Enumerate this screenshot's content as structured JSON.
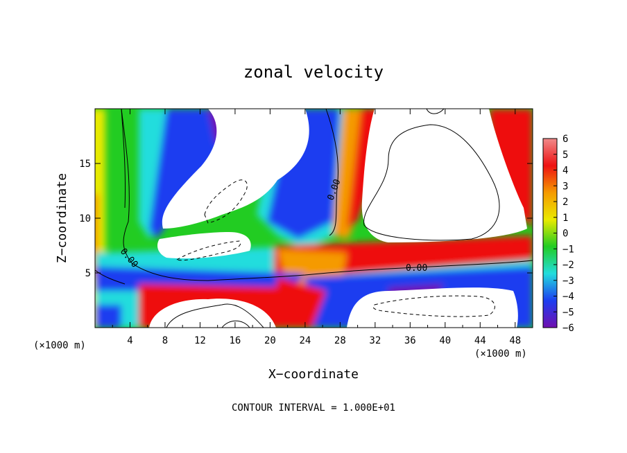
{
  "chart_data": {
    "type": "heatmap",
    "title": "zonal velocity",
    "xlabel": "X−coordinate",
    "ylabel": "Z−coordinate",
    "x_unit_left": "(×1000 m)",
    "x_unit_right": "(×1000 m)",
    "footer": "CONTOUR INTERVAL = 1.000E+01",
    "xlim": [
      0,
      50
    ],
    "ylim": [
      0,
      20
    ],
    "xticks": [
      "4",
      "8",
      "12",
      "16",
      "20",
      "24",
      "28",
      "32",
      "36",
      "40",
      "44",
      "48"
    ],
    "yticks": [
      "5",
      "10",
      "15"
    ],
    "colorbar_ticks": [
      "6",
      "5",
      "4",
      "3",
      "2",
      "1",
      "0",
      "−1",
      "−2",
      "−3",
      "−4",
      "−5",
      "−6"
    ],
    "colorbar_range": [
      -6,
      6
    ],
    "contour_labels": [
      "0.00",
      "0.00",
      "0.00"
    ],
    "colors": {
      "max": "#f08a8a",
      "red": "#ee1111",
      "orange": "#f59a00",
      "yellow": "#eaea00",
      "green": "#22cc22",
      "cyan": "#22dddd",
      "blue": "#1d3ef0",
      "min": "#7010b0"
    }
  }
}
